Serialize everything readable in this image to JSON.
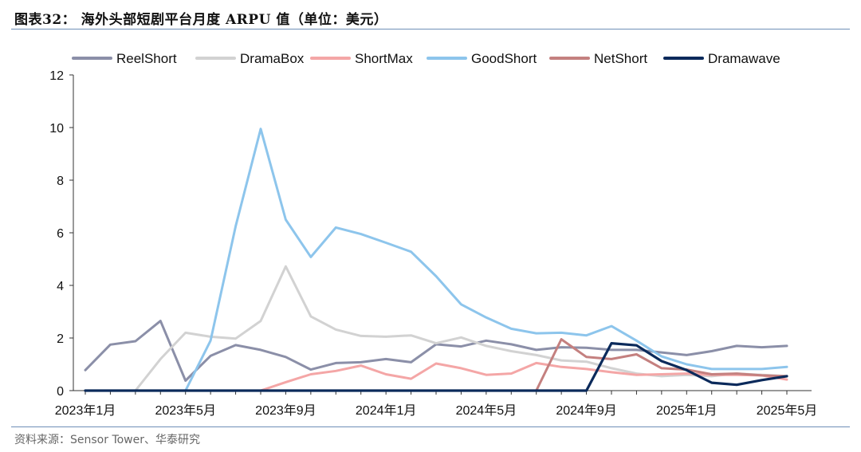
{
  "header": {
    "title": "图表32：  海外头部短剧平台月度 ARPU 值（单位：美元）"
  },
  "footer": {
    "source": "资料来源：Sensor Tower、华泰研究"
  },
  "chart_data": {
    "type": "line",
    "title": "图表32：  海外头部短剧平台月度 ARPU 值（单位：美元）",
    "xlabel": "",
    "ylabel": "",
    "ylim": [
      0,
      12
    ],
    "yticks": [
      0,
      2,
      4,
      6,
      8,
      10,
      12
    ],
    "grid": false,
    "legend_position": "top",
    "x": [
      "2023-01",
      "2023-02",
      "2023-03",
      "2023-04",
      "2023-05",
      "2023-06",
      "2023-07",
      "2023-08",
      "2023-09",
      "2023-10",
      "2023-11",
      "2023-12",
      "2024-01",
      "2024-02",
      "2024-03",
      "2024-04",
      "2024-05",
      "2024-06",
      "2024-07",
      "2024-08",
      "2024-09",
      "2024-10",
      "2024-11",
      "2024-12",
      "2025-01",
      "2025-02",
      "2025-03",
      "2025-04",
      "2025-05"
    ],
    "x_tick_labels": [
      {
        "label": "2023年1月",
        "index": 0
      },
      {
        "label": "2023年5月",
        "index": 4
      },
      {
        "label": "2023年9月",
        "index": 8
      },
      {
        "label": "2024年1月",
        "index": 12
      },
      {
        "label": "2024年5月",
        "index": 16
      },
      {
        "label": "2024年9月",
        "index": 20
      },
      {
        "label": "2025年1月",
        "index": 24
      },
      {
        "label": "2025年5月",
        "index": 28
      }
    ],
    "series": [
      {
        "name": "ReelShort",
        "color": "#8b8fa8",
        "values": [
          0.78,
          1.75,
          1.88,
          2.65,
          0.38,
          1.32,
          1.73,
          1.55,
          1.28,
          0.8,
          1.05,
          1.08,
          1.2,
          1.08,
          1.76,
          1.68,
          1.9,
          1.76,
          1.55,
          1.65,
          1.63,
          1.55,
          1.55,
          1.45,
          1.35,
          1.5,
          1.7,
          1.65,
          1.7
        ]
      },
      {
        "name": "DramaBox",
        "color": "#d2d2d2",
        "values": [
          0,
          0,
          0,
          1.2,
          2.2,
          2.05,
          1.98,
          2.65,
          4.72,
          2.82,
          2.32,
          2.08,
          2.05,
          2.1,
          1.8,
          2.02,
          1.7,
          1.5,
          1.35,
          1.15,
          1.1,
          0.85,
          0.65,
          0.55,
          0.6,
          0.55,
          0.65,
          0.6,
          0.55
        ]
      },
      {
        "name": "ShortMax",
        "color": "#f4a6a6",
        "values": [
          0,
          0,
          0,
          0,
          0,
          0,
          0,
          0,
          0.32,
          0.62,
          0.75,
          0.95,
          0.62,
          0.45,
          1.03,
          0.85,
          0.6,
          0.65,
          1.05,
          0.9,
          0.82,
          0.7,
          0.6,
          0.62,
          0.65,
          0.6,
          0.6,
          0.58,
          0.42
        ]
      },
      {
        "name": "GoodShort",
        "color": "#8dc5ec",
        "values": [
          0,
          0,
          0,
          0,
          0,
          1.9,
          6.25,
          9.95,
          6.5,
          5.08,
          6.2,
          5.95,
          5.62,
          5.28,
          4.35,
          3.28,
          2.78,
          2.35,
          2.18,
          2.2,
          2.1,
          2.45,
          1.9,
          1.3,
          1.0,
          0.82,
          0.82,
          0.82,
          0.9
        ]
      },
      {
        "name": "NetShort",
        "color": "#c4807f",
        "values": [
          0,
          0,
          0,
          0,
          0,
          0,
          0,
          0,
          0,
          0,
          0,
          0,
          0,
          0,
          0,
          0,
          0,
          0,
          0,
          1.95,
          1.28,
          1.2,
          1.38,
          0.85,
          0.8,
          0.62,
          0.65,
          0.58,
          0.55
        ]
      },
      {
        "name": "Dramawave",
        "color": "#0b2a5b",
        "values": [
          0,
          0,
          0,
          0,
          0,
          0,
          0,
          0,
          0,
          0,
          0,
          0,
          0,
          0,
          0,
          0,
          0,
          0,
          0,
          0,
          0,
          1.8,
          1.72,
          1.12,
          0.78,
          0.3,
          0.22,
          0.4,
          0.55
        ]
      }
    ]
  }
}
